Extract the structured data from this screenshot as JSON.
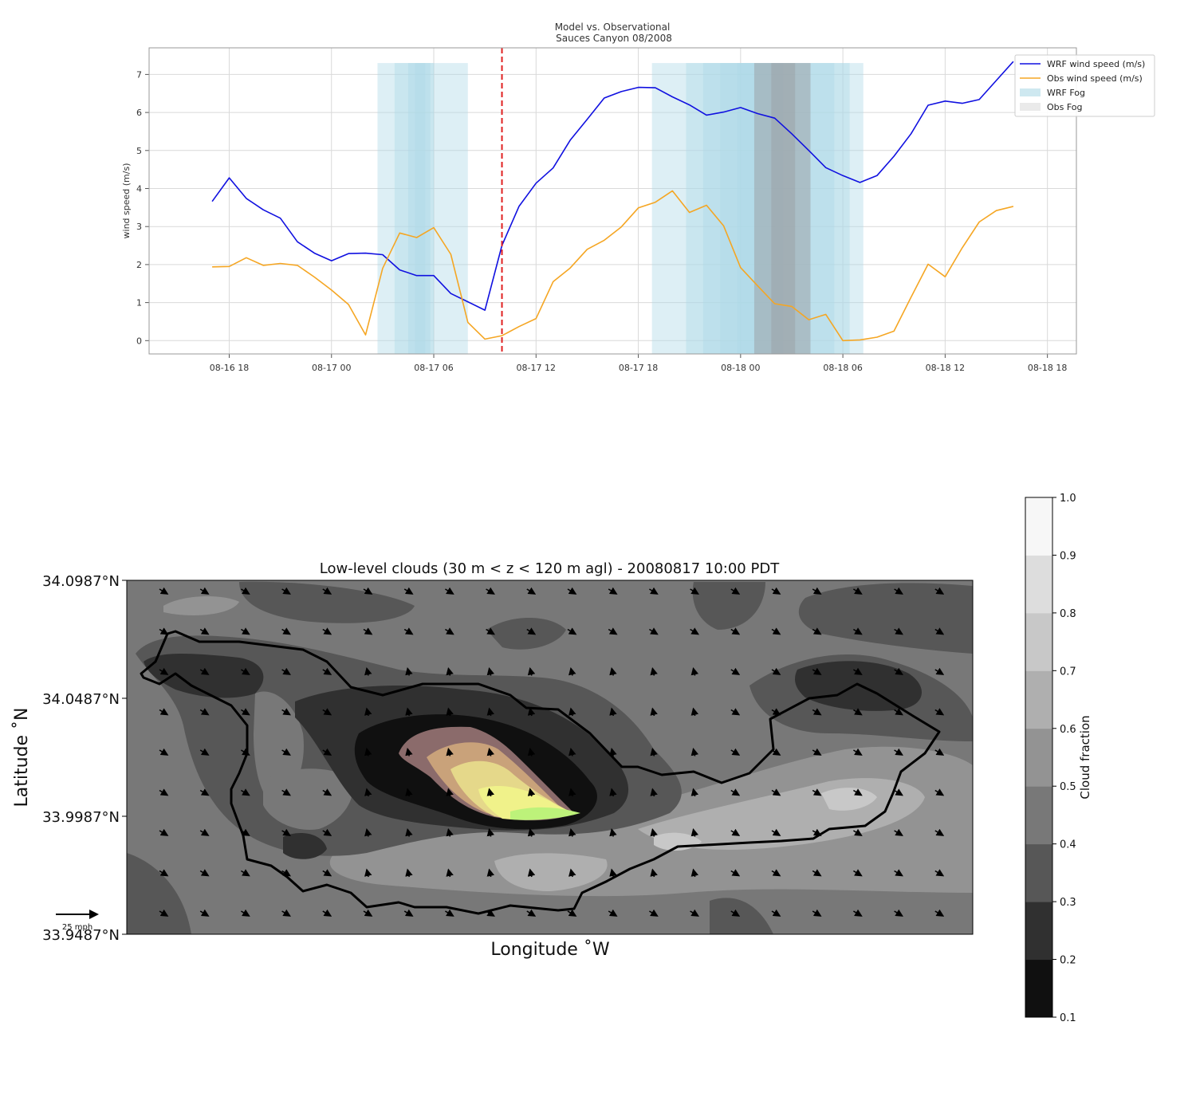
{
  "chart_data": [
    {
      "type": "line",
      "title": "Model vs. Observational",
      "subtitle": "Sauces Canyon 08/2008",
      "xlabel": "",
      "ylabel": "wind speed (m/s)",
      "x_unit": "hours",
      "x_ticks": [
        {
          "x": 18,
          "label": "08-16 18"
        },
        {
          "x": 24,
          "label": "08-17 00"
        },
        {
          "x": 30,
          "label": "08-17 06"
        },
        {
          "x": 36,
          "label": "08-17 12"
        },
        {
          "x": 42,
          "label": "08-17 18"
        },
        {
          "x": 48,
          "label": "08-18 00"
        },
        {
          "x": 54,
          "label": "08-18 06"
        },
        {
          "x": 60,
          "label": "08-18 12"
        },
        {
          "x": 66,
          "label": "08-18 18"
        }
      ],
      "y_ticks": [
        0,
        1,
        2,
        3,
        4,
        5,
        6,
        7
      ],
      "xlim": [
        13.3,
        67.7
      ],
      "ylim": [
        -0.35,
        7.7
      ],
      "grid": true,
      "legend_position": "top-right",
      "marker_line": {
        "x": 34,
        "color": "#e02020"
      },
      "series": [
        {
          "name": "WRF wind speed (m/s)",
          "color": "#1010e0",
          "x": [
            17,
            18,
            19,
            20,
            21,
            22,
            23,
            24,
            25,
            26,
            27,
            28,
            29,
            30,
            31,
            32,
            33,
            34,
            35,
            36,
            37,
            38,
            39,
            40,
            41,
            42,
            43,
            44,
            45,
            46,
            47,
            48,
            49,
            50,
            51,
            52,
            53,
            54,
            55,
            56,
            57,
            58,
            59,
            60,
            61,
            62,
            63,
            64
          ],
          "y": [
            3.66,
            4.28,
            3.74,
            3.44,
            3.22,
            2.6,
            2.3,
            2.1,
            2.29,
            2.3,
            2.26,
            1.86,
            1.71,
            1.71,
            1.24,
            1.02,
            0.8,
            2.5,
            3.53,
            4.14,
            4.54,
            5.27,
            5.82,
            6.38,
            6.55,
            6.66,
            6.65,
            6.41,
            6.2,
            5.93,
            6.01,
            6.13,
            5.97,
            5.85,
            5.44,
            5.0,
            4.55,
            4.34,
            4.16,
            4.34,
            4.85,
            5.44,
            6.19,
            6.3,
            6.24,
            6.34,
            6.84,
            7.34
          ]
        },
        {
          "name": "Obs wind speed (m/s)",
          "color": "#f5a623",
          "x": [
            17,
            18,
            19,
            20,
            21,
            22,
            23,
            24,
            25,
            26,
            27,
            28,
            29,
            30,
            31,
            32,
            33,
            34,
            35,
            36,
            37,
            38,
            39,
            40,
            41,
            42,
            43,
            44,
            45,
            46,
            47,
            48,
            49,
            50,
            51,
            52,
            53,
            54,
            55,
            56,
            57,
            58,
            59,
            60,
            61,
            62,
            63,
            64
          ],
          "y": [
            1.94,
            1.95,
            2.18,
            1.98,
            2.03,
            1.98,
            1.67,
            1.33,
            0.95,
            0.15,
            1.9,
            2.83,
            2.71,
            2.97,
            2.27,
            0.48,
            0.04,
            0.13,
            0.37,
            0.58,
            1.55,
            1.91,
            2.4,
            2.64,
            2.99,
            3.49,
            3.64,
            3.94,
            3.37,
            3.56,
            3.02,
            1.92,
            1.44,
            0.97,
            0.9,
            0.55,
            0.69,
            0.0,
            0.02,
            0.09,
            0.25,
            1.14,
            2.01,
            1.68,
            2.44,
            3.12,
            3.42,
            3.53
          ]
        }
      ],
      "fog_periods": [
        {
          "name": "WRF Fog",
          "color": "#add8e6",
          "x": [
            [
              26.7,
              32
            ],
            [
              27.7,
              30
            ],
            [
              28.5,
              29.8
            ],
            [
              28.9,
              29.5
            ],
            [
              42.8,
              55.2
            ],
            [
              44.8,
              54.4
            ],
            [
              45.8,
              53.5
            ],
            [
              46.8,
              50.5
            ],
            [
              47.8,
              50
            ]
          ]
        },
        {
          "name": "Obs Fog",
          "color": "#9aa3a8",
          "x": [
            [
              48.8,
              52.1
            ],
            [
              49.8,
              51.2
            ]
          ]
        }
      ]
    },
    {
      "type": "heatmap",
      "title": "Low-level clouds (30 m < z < 120 m agl) - 20080817 10:00 PDT",
      "xlabel": "Longitude $^\\circ$W",
      "xlabel_display": "Longitude ˚W",
      "ylabel": "Latitude ˚N",
      "y_ticks": [
        "34.0987°N",
        "34.0487°N",
        "33.9987°N",
        "33.9487°N"
      ],
      "y_tick_values": [
        34.0987,
        34.0487,
        33.9987,
        33.9487
      ],
      "ylim": [
        33.9487,
        34.0987
      ],
      "colorbar": {
        "label": "Cloud fraction",
        "ticks": [
          "0.1",
          "0.2",
          "0.3",
          "0.4",
          "0.5",
          "0.6",
          "0.7",
          "0.8",
          "0.9",
          "1.0"
        ],
        "colors": [
          "#101010",
          "#303030",
          "#575757",
          "#787878",
          "#939393",
          "#afafaf",
          "#c8c8c8",
          "#dddddd",
          "#ebebeb",
          "#f7f7f7"
        ]
      },
      "quiver_key": "25 mph",
      "wind_direction": "from northwest",
      "peak_colors": [
        "#8b6b6b",
        "#c9a27a",
        "#e5d88a",
        "#f0f28a",
        "#bdf27a"
      ]
    }
  ]
}
